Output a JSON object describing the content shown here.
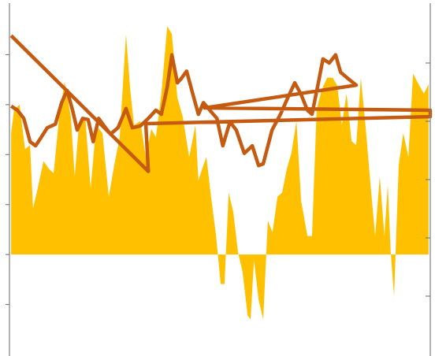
{
  "chart_data": {
    "type": "area",
    "xlim": [
      0,
      100
    ],
    "ylim": [
      -2,
      5
    ],
    "yticks": [
      -1,
      0,
      1,
      2,
      3,
      4
    ],
    "y2lim": [
      -1,
      5
    ],
    "y2ticks": [
      0,
      1,
      2,
      3,
      4
    ],
    "series": [
      {
        "type": "area",
        "color": "#ffc000",
        "x": [
          0.4,
          1.1,
          2.4,
          3.7,
          4.9,
          5.6,
          6.7,
          8.1,
          9.4,
          10.5,
          11.8,
          13.1,
          14.6,
          15.5,
          16.5,
          18.0,
          19.3,
          20.6,
          22.1,
          23.6,
          24.9,
          26.2,
          27.7,
          28.7,
          29.6,
          31.1,
          32.4,
          33.7,
          34.8,
          36.1,
          37.5,
          38.6,
          39.9,
          41.2,
          42.7,
          44.2,
          44.9,
          46.1,
          46.8,
          47.9,
          49.1,
          50.2,
          51.1,
          52.1,
          53.2,
          54.3,
          55.4,
          56.6,
          57.3,
          58.1,
          59.2,
          60.3,
          61.4,
          62.5,
          63.7,
          64.8,
          65.9,
          67.0,
          68.2,
          69.3,
          70.8,
          71.9,
          73.0,
          74.2,
          75.5,
          76.8,
          77.9,
          79.0,
          80.1,
          81.3,
          82.4,
          83.5,
          84.6,
          85.8,
          86.9,
          88.0,
          89.1,
          89.9,
          90.6,
          91.4,
          92.5,
          93.6,
          94.8,
          95.9,
          97.4,
          98.5,
          99.6
        ],
        "values": [
          2.43,
          2.9,
          3.0,
          2.11,
          2.19,
          0.92,
          1.32,
          1.87,
          1.71,
          1.63,
          2.75,
          3.46,
          2.75,
          1.56,
          2.59,
          2.75,
          1.32,
          2.59,
          2.43,
          1.16,
          1.79,
          2.35,
          4.41,
          3.3,
          2.59,
          2.67,
          1.95,
          2.51,
          2.35,
          3.22,
          4.57,
          4.41,
          3.14,
          2.75,
          1.95,
          2.59,
          1.48,
          1.79,
          1.95,
          1.16,
          0.37,
          -0.59,
          -0.59,
          1.24,
          0.84,
          0.05,
          -0.35,
          -1.22,
          -1.3,
          -0.11,
          -0.9,
          -1.3,
          0.68,
          0.44,
          1.16,
          1.24,
          1.71,
          2.03,
          2.67,
          1.08,
          0.37,
          0.37,
          2.9,
          3.3,
          3.54,
          3.54,
          3.38,
          2.59,
          3.22,
          2.27,
          2.19,
          3.54,
          2.59,
          1.4,
          0.37,
          1.56,
          0.37,
          1.4,
          0.05,
          -0.83,
          1.79,
          2.43,
          1.95,
          3.62,
          3.38,
          3.22,
          3.41
        ]
      },
      {
        "type": "line",
        "axis": "y2",
        "color": "#c55a11",
        "x": [
          0.4,
          1.9,
          3.4,
          4.9,
          6.2,
          7.5,
          9.0,
          10.9,
          12.4,
          13.7,
          15.0,
          16.1,
          17.4,
          18.7,
          19.9,
          21.2,
          22.5,
          24.0,
          25.8,
          27.7,
          29.2,
          31.1,
          33.0,
          34.8,
          36.1,
          37.5,
          38.6,
          39.9,
          40.8,
          42.1,
          43.6,
          44.9,
          46.1,
          47.6,
          49.3,
          50.7,
          52.4,
          53.9,
          55.8,
          57.7,
          59.2,
          60.3,
          62.4,
          64.4,
          66.3,
          67.8,
          69.3,
          70.8,
          71.9,
          73.4,
          74.5,
          76.0,
          77.5,
          78.7,
          80.5,
          82.4,
          46.4,
          100,
          100,
          32.4,
          33.0,
          0.4
        ],
        "values": [
          3.26,
          3.19,
          3.05,
          2.65,
          2.58,
          2.72,
          2.89,
          2.95,
          3.32,
          3.53,
          3.19,
          2.85,
          3.05,
          3.03,
          2.65,
          3.05,
          2.92,
          2.78,
          2.89,
          3.22,
          2.89,
          2.92,
          3.05,
          3.19,
          3.12,
          3.59,
          4.14,
          3.66,
          3.73,
          3.86,
          3.46,
          3.12,
          3.32,
          3.19,
          3.05,
          2.58,
          2.99,
          2.85,
          2.45,
          2.58,
          2.24,
          2.27,
          2.85,
          3.12,
          3.43,
          3.66,
          3.46,
          3.19,
          3.12,
          3.66,
          4.07,
          4.0,
          4.14,
          3.84,
          3.73,
          3.62,
          3.23,
          3.19,
          3.08,
          2.96,
          2.14,
          4.47
        ]
      }
    ]
  }
}
